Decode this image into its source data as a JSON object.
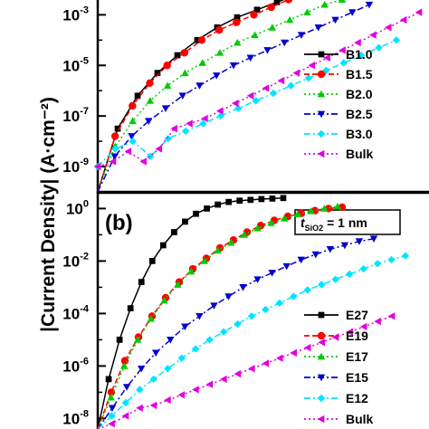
{
  "ylabel": "|Current Density| (A·cm⁻²)",
  "chart_data": [
    {
      "type": "line",
      "panel": "a",
      "panel_label": "",
      "yscale": "log",
      "ylim_log10": [
        -10,
        -2.2
      ],
      "yticks": [
        {
          "base": "10",
          "exp": "-3"
        },
        {
          "base": "10",
          "exp": "-5"
        },
        {
          "base": "10",
          "exp": "-7"
        },
        {
          "base": "10",
          "exp": "-9"
        }
      ],
      "ytick_values_log10": [
        -3,
        -5,
        -7,
        -9
      ],
      "legend_position": "right",
      "series": [
        {
          "name": "B1.0",
          "color": "#000000",
          "marker": "square",
          "dash": "solid",
          "log10_y": [
            -10.0,
            -7.5,
            -6.2,
            -5.3,
            -4.6,
            -4.0,
            -3.5,
            -3.1,
            -2.8,
            -2.5,
            -2.2
          ]
        },
        {
          "name": "B1.5",
          "color": "#ff0000",
          "marker": "circle",
          "dash": "dash",
          "log10_y": [
            -10.0,
            -7.8,
            -6.6,
            -5.7,
            -5.0,
            -4.5,
            -4.0,
            -3.6,
            -3.3,
            -3.0,
            -2.7,
            -2.4,
            -2.2
          ]
        },
        {
          "name": "B2.0",
          "color": "#00cc00",
          "marker": "triangle-up",
          "dash": "dot",
          "log10_y": [
            -10.0,
            -8.2,
            -7.2,
            -6.4,
            -5.8,
            -5.3,
            -4.9,
            -4.5,
            -4.1,
            -3.8,
            -3.5,
            -3.2,
            -2.9,
            -2.6,
            -2.4
          ]
        },
        {
          "name": "B2.5",
          "color": "#0000cc",
          "marker": "triangle-down",
          "dash": "dashdot",
          "log10_y": [
            -10.0,
            -8.6,
            -7.8,
            -7.2,
            -6.7,
            -6.2,
            -5.8,
            -5.4,
            -5.0,
            -4.7,
            -4.4,
            -4.1,
            -3.8,
            -3.5,
            -3.2,
            -2.9,
            -2.6
          ]
        },
        {
          "name": "B3.0",
          "color": "#00e5ff",
          "marker": "diamond",
          "dash": "dashdot",
          "log10_y": [
            -9.0,
            -8.3,
            -8.0,
            -8.6,
            -7.9,
            -7.6,
            -7.3,
            -7.0,
            -6.7,
            -6.4,
            -6.1,
            -5.8,
            -5.5,
            -5.2,
            -4.9,
            -4.6,
            -4.3,
            -4.0
          ]
        },
        {
          "name": "Bulk",
          "color": "#e000e0",
          "marker": "triangle-left",
          "dash": "dot",
          "log10_y": [
            -9.0,
            -8.8,
            -8.4,
            -8.8,
            -8.3,
            -7.5,
            -7.3,
            -7.1,
            -6.8,
            -6.5,
            -6.2,
            -5.9,
            -5.6,
            -5.3,
            -5.0,
            -4.7,
            -4.4,
            -4.1,
            -3.8,
            -3.5,
            -3.2,
            -2.9
          ]
        }
      ]
    },
    {
      "type": "line",
      "panel": "b",
      "panel_label": "(b)",
      "annotation_t": "t",
      "annotation_sub": "SiO2",
      "annotation_rest": " = 1 nm",
      "yscale": "log",
      "ylim_log10": [
        -8.4,
        0.6
      ],
      "yticks": [
        {
          "base": "10",
          "exp": "0"
        },
        {
          "base": "10",
          "exp": "-2"
        },
        {
          "base": "10",
          "exp": "-4"
        },
        {
          "base": "10",
          "exp": "-6"
        },
        {
          "base": "10",
          "exp": "-8"
        }
      ],
      "ytick_values_log10": [
        0,
        -2,
        -4,
        -6,
        -8
      ],
      "legend_position": "right",
      "series": [
        {
          "name": "E27",
          "color": "#000000",
          "marker": "square",
          "dash": "solid",
          "log10_y": [
            -8.4,
            -6.5,
            -5.0,
            -3.8,
            -2.8,
            -2.0,
            -1.4,
            -0.9,
            -0.5,
            -0.2,
            0.0,
            0.15,
            0.25,
            0.3,
            0.33,
            0.36,
            0.38,
            0.4
          ]
        },
        {
          "name": "E19",
          "color": "#ff0000",
          "marker": "circle",
          "dash": "dash",
          "log10_y": [
            -8.4,
            -7.0,
            -5.8,
            -4.9,
            -4.1,
            -3.4,
            -2.8,
            -2.3,
            -1.9,
            -1.5,
            -1.2,
            -0.9,
            -0.65,
            -0.45,
            -0.3,
            -0.18,
            -0.08,
            0.0,
            0.05
          ]
        },
        {
          "name": "E17",
          "color": "#00cc00",
          "marker": "triangle-up",
          "dash": "dot",
          "log10_y": [
            -8.4,
            -7.2,
            -6.0,
            -5.0,
            -4.2,
            -3.5,
            -2.9,
            -2.4,
            -2.0,
            -1.6,
            -1.3,
            -1.0,
            -0.75,
            -0.55,
            -0.38,
            -0.22,
            -0.1,
            0.0,
            0.08
          ]
        },
        {
          "name": "E15",
          "color": "#0000cc",
          "marker": "triangle-down",
          "dash": "dashdot",
          "log10_y": [
            -8.4,
            -7.6,
            -6.8,
            -6.1,
            -5.5,
            -5.0,
            -4.5,
            -4.1,
            -3.7,
            -3.35,
            -3.0,
            -2.7,
            -2.45,
            -2.2,
            -1.95,
            -1.75,
            -1.55,
            -1.4,
            -1.25,
            -1.15
          ]
        },
        {
          "name": "E12",
          "color": "#00e5ff",
          "marker": "diamond",
          "dash": "dashdot",
          "log10_y": [
            -8.4,
            -7.9,
            -7.4,
            -6.9,
            -6.5,
            -6.1,
            -5.7,
            -5.35,
            -5.0,
            -4.7,
            -4.4,
            -4.1,
            -3.85,
            -3.6,
            -3.35,
            -3.1,
            -2.9,
            -2.7,
            -2.5,
            -2.3,
            -2.1,
            -1.95,
            -1.8
          ]
        },
        {
          "name": "Bulk",
          "color": "#e000e0",
          "marker": "triangle-left",
          "dash": "dot",
          "log10_y": [
            -8.4,
            -8.2,
            -7.9,
            -7.6,
            -7.5,
            -7.3,
            -7.1,
            -6.9,
            -6.7,
            -6.5,
            -6.3,
            -6.1,
            -5.9,
            -5.7,
            -5.5,
            -5.3,
            -5.1,
            -4.9,
            -4.7,
            -4.5,
            -4.3,
            -4.1
          ]
        }
      ]
    }
  ]
}
